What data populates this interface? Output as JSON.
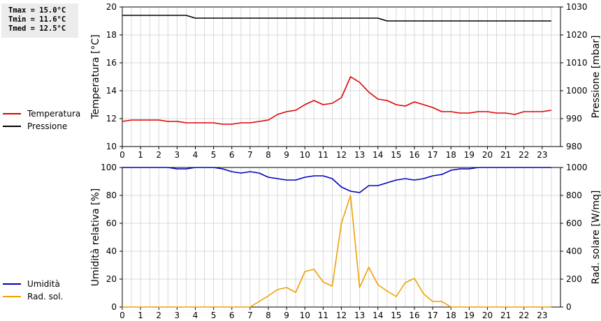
{
  "stats": {
    "tmax": "Tmax = 15.0°C",
    "tmin": "Tmin = 11.6°C",
    "tmed": "Tmed = 12.5°C"
  },
  "chart_data": [
    {
      "type": "line",
      "title": "",
      "xlabel": "",
      "xlim": [
        0,
        24
      ],
      "xticks": [
        "0",
        "1",
        "2",
        "3",
        "4",
        "5",
        "6",
        "7",
        "8",
        "9",
        "10",
        "11",
        "12",
        "13",
        "14",
        "15",
        "16",
        "17",
        "18",
        "19",
        "20",
        "21",
        "22",
        "23"
      ],
      "ylabel_left": "Temperatura [°C]",
      "ylim_left": [
        10,
        20
      ],
      "yticks_left": [
        "10",
        "12",
        "14",
        "16",
        "18",
        "20"
      ],
      "ylabel_right": "Pressione [mbar]",
      "ylim_right": [
        980,
        1030
      ],
      "yticks_right": [
        "980",
        "990",
        "1000",
        "1010",
        "1020",
        "1030"
      ],
      "grid": true,
      "legend_position": "left",
      "series": [
        {
          "name": "Temperatura",
          "axis": "left",
          "color": "#dd0000",
          "x": [
            0,
            0.5,
            1,
            1.5,
            2,
            2.5,
            3,
            3.5,
            4,
            4.5,
            5,
            5.5,
            6,
            6.5,
            7,
            7.5,
            8,
            8.5,
            9,
            9.5,
            10,
            10.5,
            11,
            11.5,
            12,
            12.5,
            13,
            13.5,
            14,
            14.5,
            15,
            15.5,
            16,
            16.5,
            17,
            17.5,
            18,
            18.5,
            19,
            19.5,
            20,
            20.5,
            21,
            21.5,
            22,
            22.5,
            23,
            23.5
          ],
          "values": [
            11.8,
            11.9,
            11.9,
            11.9,
            11.9,
            11.8,
            11.8,
            11.7,
            11.7,
            11.7,
            11.7,
            11.6,
            11.6,
            11.7,
            11.7,
            11.8,
            11.9,
            12.3,
            12.5,
            12.6,
            13.0,
            13.3,
            13.0,
            13.1,
            13.5,
            15.0,
            14.6,
            13.9,
            13.4,
            13.3,
            13.0,
            12.9,
            13.2,
            13.0,
            12.8,
            12.5,
            12.5,
            12.4,
            12.4,
            12.5,
            12.5,
            12.4,
            12.4,
            12.3,
            12.5,
            12.5,
            12.5,
            12.6
          ]
        },
        {
          "name": "Pressione",
          "axis": "right",
          "color": "#000000",
          "x": [
            0,
            3.5,
            4,
            14,
            14.5,
            23.5
          ],
          "values": [
            1027,
            1027,
            1026,
            1026,
            1025,
            1025
          ]
        }
      ]
    },
    {
      "type": "line",
      "title": "",
      "xlabel": "",
      "xlim": [
        0,
        24
      ],
      "xticks": [
        "0",
        "1",
        "2",
        "3",
        "4",
        "5",
        "6",
        "7",
        "8",
        "9",
        "10",
        "11",
        "12",
        "13",
        "14",
        "15",
        "16",
        "17",
        "18",
        "19",
        "20",
        "21",
        "22",
        "23"
      ],
      "ylabel_left": "Umidità relativa [%]",
      "ylim_left": [
        0,
        100
      ],
      "yticks_left": [
        "0",
        "20",
        "40",
        "60",
        "80",
        "100"
      ],
      "ylabel_right": "Rad. solare [W/mq]",
      "ylim_right": [
        0,
        1000
      ],
      "yticks_right": [
        "0",
        "200",
        "400",
        "600",
        "800",
        "1000"
      ],
      "grid": true,
      "legend_position": "left",
      "series": [
        {
          "name": "Umidità",
          "axis": "left",
          "color": "#0000bb",
          "x": [
            0,
            2.5,
            3,
            3.5,
            4,
            5,
            5.5,
            6,
            6.5,
            7,
            7.5,
            8,
            8.5,
            9,
            9.5,
            10,
            10.5,
            11,
            11.5,
            12,
            12.5,
            13,
            13.5,
            14,
            14.5,
            15,
            15.5,
            16,
            16.5,
            17,
            17.5,
            18,
            18.5,
            19,
            19.5,
            23.5
          ],
          "values": [
            100,
            100,
            99,
            99,
            100,
            100,
            99,
            97,
            96,
            97,
            96,
            93,
            92,
            91,
            91,
            93,
            94,
            94,
            92,
            86,
            83,
            82,
            87,
            87,
            89,
            91,
            92,
            91,
            92,
            94,
            95,
            98,
            99,
            99,
            100,
            100
          ]
        },
        {
          "name": "Rad. sol.",
          "axis": "right",
          "color": "#f0a000",
          "x": [
            0,
            7,
            7.5,
            8,
            8.5,
            9,
            9.5,
            10,
            10.5,
            11,
            11.5,
            12,
            12.5,
            13,
            13.5,
            14,
            14.5,
            15,
            15.5,
            16,
            16.5,
            17,
            17.5,
            18,
            23.5
          ],
          "values": [
            0,
            0,
            40,
            80,
            125,
            140,
            105,
            255,
            270,
            180,
            150,
            600,
            800,
            140,
            285,
            160,
            115,
            75,
            175,
            205,
            95,
            40,
            40,
            0,
            0
          ]
        }
      ]
    }
  ]
}
